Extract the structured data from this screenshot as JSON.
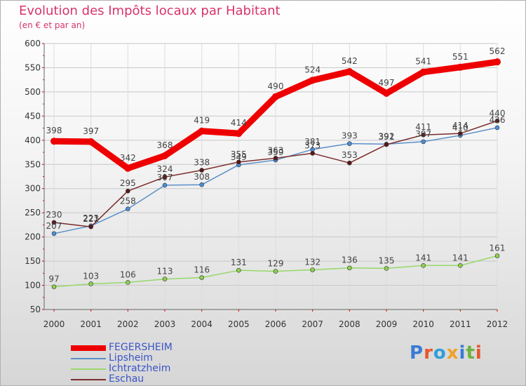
{
  "title": "Evolution des Impôts locaux par Habitant",
  "subtitle": "(en € et par an)",
  "logo": {
    "text": "Proxiti",
    "letter_colors": [
      "#3a7bd5",
      "#e8562a",
      "#2f9fd8",
      "#f0a02a",
      "#3a7bd5",
      "#6cb33e",
      "#e8562a"
    ]
  },
  "chart_data": {
    "type": "line",
    "title": "Evolution des Impôts locaux par Habitant",
    "subtitle": "(en € et par an)",
    "xlabel": "",
    "ylabel": "",
    "x": [
      "2000",
      "2001",
      "2002",
      "2003",
      "2004",
      "2005",
      "2006",
      "2007",
      "2008",
      "2009",
      "2010",
      "2011",
      "2012"
    ],
    "ylim": [
      50,
      600
    ],
    "yticks": [
      50,
      100,
      150,
      200,
      250,
      300,
      350,
      400,
      450,
      500,
      550,
      600
    ],
    "series": [
      {
        "name": "FEGERSHEIM",
        "color": "#ee0000",
        "bold": true,
        "values": [
          398,
          397,
          342,
          368,
          419,
          414,
          490,
          524,
          542,
          497,
          541,
          551,
          562
        ]
      },
      {
        "name": "Lipsheim",
        "color": "#5b8fc8",
        "marker": "#4a8ed8",
        "values": [
          207,
          223,
          258,
          307,
          308,
          349,
          359,
          381,
          393,
          392,
          397,
          410,
          426
        ]
      },
      {
        "name": "Ichtratzheim",
        "color": "#96d86a",
        "marker": "#8ed04e",
        "values": [
          97,
          103,
          106,
          113,
          116,
          131,
          129,
          132,
          136,
          135,
          141,
          141,
          161
        ]
      },
      {
        "name": "Eschau",
        "color": "#7a2c2c",
        "marker": "#5a1818",
        "values": [
          230,
          221,
          295,
          324,
          338,
          355,
          363,
          373,
          353,
          391,
          411,
          414,
          440
        ]
      }
    ]
  }
}
